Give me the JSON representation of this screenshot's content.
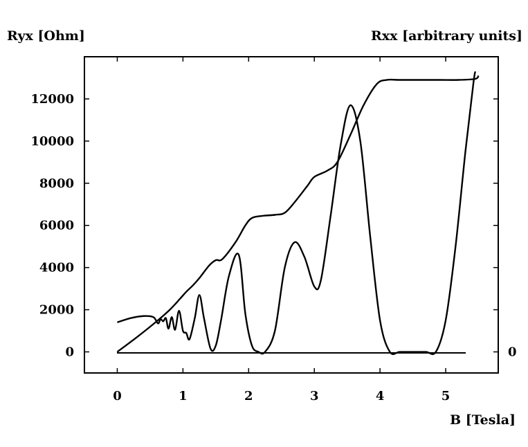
{
  "chart_data": {
    "type": "line",
    "left_axis_label": "Ryx [Ohm]",
    "right_axis_label": "Rxx [arbitrary units]",
    "xlabel": "B [Tesla]",
    "xlim": [
      -0.5,
      5.8
    ],
    "ylim": [
      -1000,
      14000
    ],
    "x_ticks": [
      0,
      1,
      2,
      3,
      4,
      5
    ],
    "y_ticks": [
      0,
      2000,
      4000,
      6000,
      8000,
      10000,
      12000
    ],
    "right_ticks": [
      {
        "label": "0",
        "value": 0
      }
    ],
    "grid": false,
    "series": [
      {
        "key": "ryx",
        "x": [
          0,
          0.3,
          0.6,
          0.8,
          0.95,
          1.05,
          1.15,
          1.25,
          1.4,
          1.5,
          1.6,
          1.8,
          1.95,
          2.05,
          2.2,
          2.4,
          2.55,
          2.7,
          2.9,
          3.0,
          3.2,
          3.35,
          3.55,
          3.75,
          3.95,
          4.1,
          4.3,
          4.6,
          4.9,
          5.2,
          5.45,
          5.5
        ],
        "y": [
          0,
          700,
          1450,
          2000,
          2500,
          2850,
          3150,
          3500,
          4100,
          4350,
          4400,
          5200,
          6000,
          6350,
          6450,
          6500,
          6600,
          7100,
          7900,
          8300,
          8600,
          9000,
          10300,
          11700,
          12700,
          12900,
          12900,
          12900,
          12900,
          12900,
          12950,
          13100
        ]
      },
      {
        "key": "rxx",
        "x": [
          0,
          0.2,
          0.4,
          0.55,
          0.62,
          0.66,
          0.7,
          0.74,
          0.78,
          0.83,
          0.88,
          0.94,
          1.0,
          1.05,
          1.1,
          1.18,
          1.25,
          1.32,
          1.42,
          1.5,
          1.58,
          1.7,
          1.85,
          1.95,
          2.05,
          2.15,
          2.25,
          2.4,
          2.55,
          2.7,
          2.85,
          3.0,
          3.1,
          3.25,
          3.4,
          3.55,
          3.7,
          3.85,
          4.0,
          4.15,
          4.3,
          4.5,
          4.7,
          4.85,
          5.0,
          5.15,
          5.3,
          5.42,
          5.45
        ],
        "y": [
          1400,
          1600,
          1700,
          1650,
          1350,
          1550,
          1450,
          1600,
          1100,
          1650,
          1050,
          1950,
          1000,
          900,
          600,
          1600,
          2700,
          1600,
          150,
          300,
          1500,
          3600,
          4600,
          1800,
          300,
          0,
          0,
          1000,
          4000,
          5200,
          4500,
          3100,
          3400,
          6500,
          9800,
          11700,
          10000,
          5500,
          1500,
          0,
          0,
          0,
          0,
          0,
          1500,
          5000,
          9500,
          12700,
          13300
        ]
      }
    ]
  }
}
